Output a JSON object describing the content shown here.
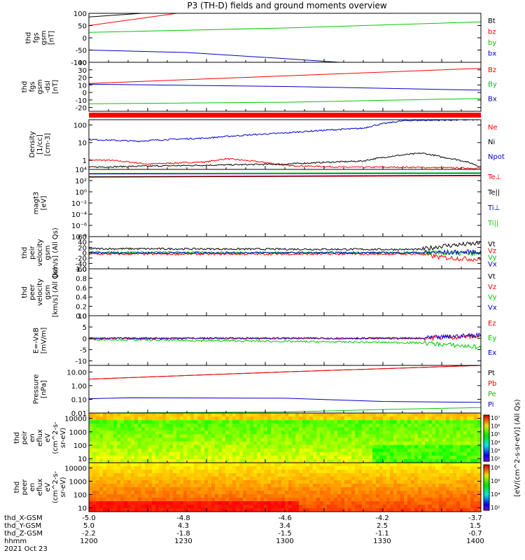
{
  "title": "P3 (TH-D) fields and ground moments overview",
  "footer": {
    "row_labels": [
      "thd_X-GSM",
      "thd_Y-GSM",
      "thd_Z-GSM",
      "hhmm",
      "2021 Oct 23"
    ],
    "columns": [
      {
        "x": "-5.0",
        "y": "5.0",
        "z": "-2.2",
        "time": "1200"
      },
      {
        "x": "-4.8",
        "y": "4.3",
        "z": "-1.8",
        "time": "1230"
      },
      {
        "x": "-4.6",
        "y": "3.4",
        "z": "-1.5",
        "time": "1300"
      },
      {
        "x": "-4.2",
        "y": "2.5",
        "z": "-1.1",
        "time": "1330"
      },
      {
        "x": "-3.7",
        "y": "1.5",
        "z": "-0.7",
        "time": "1400"
      }
    ]
  },
  "colorbars": {
    "label": "[eV/(cm^2-s-sr-eV)] (All Qs)",
    "peir_ticks": [
      "10⁷",
      "10⁶",
      "10⁵",
      "10⁴",
      "10³",
      "10²"
    ],
    "peer_ticks": [
      "10⁸",
      "10⁶",
      "10⁴",
      "10²"
    ]
  },
  "colors": {
    "black": "#000000",
    "red": "#ff0000",
    "green": "#00c800",
    "blue": "#0000c8"
  },
  "chart_data": [
    {
      "id": "fgs_gsm",
      "type": "line",
      "ylabel_lines": [
        "thd",
        "fgs",
        "gsm",
        "[nT]"
      ],
      "ylim": [
        -100,
        100
      ],
      "yticks": [
        {
          "v": 100,
          "l": "100"
        },
        {
          "v": 50,
          "l": "50"
        },
        {
          "v": 0,
          "l": "0"
        },
        {
          "v": -50,
          "l": "-50"
        },
        {
          "v": -100,
          "l": "-100"
        }
      ],
      "series": [
        {
          "name": "Bt",
          "color": "#000000",
          "x": [
            1200,
            1227
          ],
          "y": [
            85,
            100
          ]
        },
        {
          "name": "bz",
          "color": "#ff0000",
          "x": [
            1200,
            1245
          ],
          "y": [
            50,
            100
          ]
        },
        {
          "name": "by",
          "color": "#00c800",
          "x": [
            1200,
            1300,
            1400
          ],
          "y": [
            22,
            40,
            65
          ]
        },
        {
          "name": "bx",
          "color": "#0000c8",
          "x": [
            1200,
            1250,
            1300,
            1328
          ],
          "y": [
            -50,
            -60,
            -85,
            -100
          ]
        }
      ]
    },
    {
      "id": "fgs_gsm_dsl",
      "type": "line",
      "ylabel_lines": [
        "thd",
        "fgs",
        "gsm",
        "-dsl",
        "[nT]"
      ],
      "ylim": [
        -25,
        40
      ],
      "yticks": [
        {
          "v": 40,
          "l": "40"
        },
        {
          "v": 30,
          "l": "30"
        },
        {
          "v": 20,
          "l": "20"
        },
        {
          "v": 10,
          "l": "10"
        },
        {
          "v": 0,
          "l": "0"
        },
        {
          "v": -10,
          "l": "-10"
        },
        {
          "v": -20,
          "l": "-20"
        }
      ],
      "series": [
        {
          "name": "Bz",
          "color": "#ff0000",
          "x": [
            1200,
            1300,
            1400
          ],
          "y": [
            12,
            22,
            32
          ]
        },
        {
          "name": "By",
          "color": "#00c800",
          "x": [
            1200,
            1300,
            1400
          ],
          "y": [
            -15,
            -13,
            -8
          ]
        },
        {
          "name": "Bx",
          "color": "#0000c8",
          "x": [
            1200,
            1300,
            1400
          ],
          "y": [
            11,
            8,
            3
          ]
        }
      ]
    },
    {
      "id": "density",
      "type": "line",
      "scale": "log",
      "ylabel_lines": [
        "Density",
        "[1/cc]",
        "[cm-3]"
      ],
      "ylim": [
        0.3,
        200
      ],
      "yticks": [
        {
          "v": 100,
          "l": "100"
        },
        {
          "v": 10,
          "l": "10"
        },
        {
          "v": 1,
          "l": "1"
        }
      ],
      "series": [
        {
          "name": "Ne",
          "color": "#ff0000",
          "x": [
            1200,
            1210,
            1230,
            1260,
            1270,
            1300,
            1330,
            1360,
            1400
          ],
          "y": [
            1.0,
            1.0,
            0.6,
            0.8,
            1.2,
            0.5,
            0.4,
            0.4,
            0.35
          ]
        },
        {
          "name": "Ni",
          "color": "#000000",
          "x": [
            1200,
            1250,
            1300,
            1340,
            1370,
            1380,
            1400
          ],
          "y": [
            0.4,
            0.5,
            0.6,
            0.9,
            2.5,
            1.5,
            0.4
          ]
        },
        {
          "name": "Npot",
          "color": "#0000c8",
          "x": [
            1200,
            1225,
            1240,
            1260,
            1300,
            1340,
            1362,
            1400
          ],
          "y": [
            15,
            12,
            15,
            18,
            35,
            65,
            180,
            200
          ]
        }
      ]
    },
    {
      "id": "temperature",
      "type": "line",
      "scale": "log",
      "ylabel_lines": [
        "magt3",
        "[eV]"
      ],
      "ylim": [
        1e-08,
        10000
      ],
      "yticks": [
        {
          "v": 10000,
          "l": "10⁴"
        },
        {
          "v": 100,
          "l": "10²"
        },
        {
          "v": 1,
          "l": "10⁰"
        },
        {
          "v": 0.01,
          "l": "10⁻²"
        },
        {
          "v": 0.0001,
          "l": "10⁻⁴"
        },
        {
          "v": 1e-06,
          "l": "10⁻⁶"
        },
        {
          "v": 1e-08,
          "l": "10⁻⁸"
        }
      ],
      "series": [
        {
          "name": "Te⊥",
          "color": "#ff0000",
          "x": [
            1200,
            1400
          ],
          "y": [
            400,
            700
          ]
        },
        {
          "name": "Te||",
          "color": "#000000",
          "x": [
            1200,
            1400
          ],
          "y": [
            500,
            900
          ]
        },
        {
          "name": "Ti⊥",
          "color": "#0000c8",
          "x": [
            1200,
            1400
          ],
          "y": [
            1500,
            2000
          ]
        },
        {
          "name": "Ti||",
          "color": "#00c800",
          "x": [
            1200,
            1400
          ],
          "y": [
            2000,
            2500
          ]
        }
      ]
    },
    {
      "id": "peir_velocity",
      "type": "line",
      "ylabel_lines": [
        "thd",
        "peir",
        "velocity",
        "gsm",
        "[km/s] (All Qs)"
      ],
      "ylim": [
        -60,
        60
      ],
      "yticks": [
        {
          "v": 60,
          "l": "60"
        },
        {
          "v": 40,
          "l": "40"
        },
        {
          "v": 20,
          "l": "20"
        },
        {
          "v": 0,
          "l": "0"
        },
        {
          "v": -20,
          "l": "-20"
        },
        {
          "v": -40,
          "l": "-40"
        },
        {
          "v": -60,
          "l": "-60"
        }
      ],
      "series": [
        {
          "name": "Vt",
          "color": "#000000",
          "x": [
            1200,
            1370,
            1380,
            1400
          ],
          "y": [
            15,
            12,
            25,
            35
          ]
        },
        {
          "name": "Vz",
          "color": "#ff0000",
          "x": [
            1200,
            1370,
            1380,
            1400
          ],
          "y": [
            -5,
            -5,
            -18,
            -25
          ]
        },
        {
          "name": "Vy",
          "color": "#00c800",
          "x": [
            1200,
            1370,
            1400
          ],
          "y": [
            2,
            0,
            -5
          ]
        },
        {
          "name": "Vx",
          "color": "#0000c8",
          "x": [
            1200,
            1370,
            1400
          ],
          "y": [
            -1,
            0,
            3
          ]
        }
      ]
    },
    {
      "id": "peer_velocity",
      "type": "line",
      "ylabel_lines": [
        "thd",
        "peer",
        "velocity",
        "gsm",
        "[km/s] (All Qs)"
      ],
      "ylim": [
        0,
        1
      ],
      "yticks": [
        {
          "v": 1.0,
          "l": "1.0"
        },
        {
          "v": 0.8,
          "l": "0.8"
        },
        {
          "v": 0.6,
          "l": "0.6"
        },
        {
          "v": 0.4,
          "l": "0.4"
        },
        {
          "v": 0.2,
          "l": "0.2"
        },
        {
          "v": 0.0,
          "l": "0.0"
        }
      ],
      "series": [
        {
          "name": "Vt",
          "color": "#000000",
          "x": [],
          "y": []
        },
        {
          "name": "Vz",
          "color": "#ff0000",
          "x": [],
          "y": []
        },
        {
          "name": "Vy",
          "color": "#00c800",
          "x": [],
          "y": []
        },
        {
          "name": "Vx",
          "color": "#0000c8",
          "x": [],
          "y": []
        }
      ]
    },
    {
      "id": "efield",
      "type": "line",
      "ylabel_lines": [
        "E=-VxB",
        "[mV/m]"
      ],
      "ylim": [
        -12,
        10
      ],
      "yticks": [
        {
          "v": 10,
          "l": "10"
        },
        {
          "v": 5,
          "l": "5"
        },
        {
          "v": 0,
          "l": "0"
        },
        {
          "v": -5,
          "l": "-5"
        },
        {
          "v": -10,
          "l": "-10"
        }
      ],
      "series": [
        {
          "name": "Ez",
          "color": "#ff0000",
          "x": [
            1200,
            1370,
            1400
          ],
          "y": [
            0,
            0,
            1
          ]
        },
        {
          "name": "Ey",
          "color": "#00c800",
          "x": [
            1200,
            1370,
            1400
          ],
          "y": [
            -0.5,
            -2,
            -4
          ]
        },
        {
          "name": "Ex",
          "color": "#0000c8",
          "x": [
            1200,
            1370,
            1400
          ],
          "y": [
            0,
            0,
            1.5
          ]
        }
      ]
    },
    {
      "id": "pressure",
      "type": "line",
      "scale": "log",
      "ylabel_lines": [
        "Pressure",
        "[nPa]"
      ],
      "ylim": [
        0.01,
        30
      ],
      "yticks": [
        {
          "v": 10,
          "l": "10.00"
        },
        {
          "v": 1,
          "l": "1.00"
        },
        {
          "v": 0.1,
          "l": "0.10"
        },
        {
          "v": 0.01,
          "l": "0.01"
        }
      ],
      "series": [
        {
          "name": "Pt",
          "color": "#000000",
          "x": [
            1200,
            1300,
            1400
          ],
          "y": [
            3,
            10,
            30
          ]
        },
        {
          "name": "Pb",
          "color": "#ff0000",
          "x": [
            1200,
            1300,
            1400
          ],
          "y": [
            3,
            10,
            30
          ]
        },
        {
          "name": "Pe",
          "color": "#00c800",
          "x": [
            1200,
            1300,
            1350,
            1400
          ],
          "y": [
            0.01,
            0.012,
            0.018,
            0.025
          ]
        },
        {
          "name": "Pi",
          "color": "#0000c8",
          "x": [
            1200,
            1220,
            1300,
            1350,
            1400
          ],
          "y": [
            0.11,
            0.13,
            0.12,
            0.07,
            0.06
          ]
        }
      ]
    },
    {
      "id": "peir_eflux",
      "type": "heatmap",
      "scale": "log",
      "ylabel_lines": [
        "thd",
        "peir",
        "en",
        "eflux",
        "eV",
        "(cm^2-s-",
        "sr-eV)"
      ],
      "ylim": [
        5,
        25000
      ],
      "yticks": [
        {
          "v": 10000,
          "l": "10000"
        },
        {
          "v": 1000,
          "l": "1000"
        },
        {
          "v": 100,
          "l": "100"
        },
        {
          "v": 10,
          "l": "10"
        }
      ]
    },
    {
      "id": "peer_eflux",
      "type": "heatmap",
      "scale": "log",
      "ylabel_lines": [
        "thd",
        "peer",
        "en",
        "eflux",
        "eV",
        "(cm^2-s-",
        "sr-eV)"
      ],
      "ylim": [
        5,
        25000
      ],
      "yticks": [
        {
          "v": 10000,
          "l": "10000"
        },
        {
          "v": 1000,
          "l": "1000"
        },
        {
          "v": 100,
          "l": "100"
        },
        {
          "v": 10,
          "l": "10"
        }
      ]
    }
  ]
}
